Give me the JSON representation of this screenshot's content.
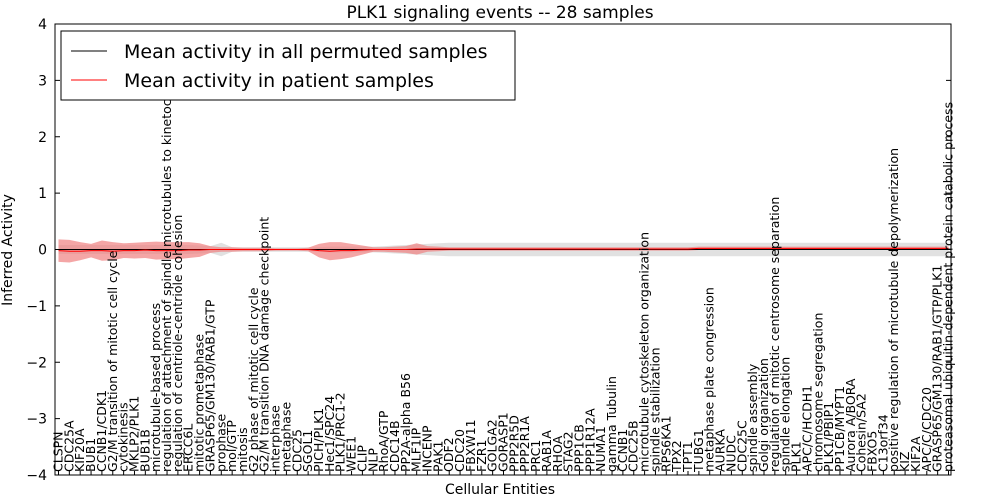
{
  "chart_data": {
    "type": "line",
    "title": "PLK1 signaling events -- 28 samples",
    "xlabel": "Cellular Entities",
    "ylabel": "Inferred Activity",
    "ylim": [
      -4,
      4
    ],
    "yticks": [
      -4,
      -3,
      -2,
      -1,
      0,
      1,
      2,
      3,
      4
    ],
    "legend_position": "top-left",
    "colors": {
      "permuted": "#000000",
      "patient": "#ff0000",
      "patient_band": "#f08080",
      "permuted_band": "#c8c8c8"
    },
    "categories": [
      "CLSPN",
      "CDC25A",
      "KIF20A",
      "BUB1",
      "CCNB1/CDK1",
      "G2/M transition of mitotic cell cycle",
      "cytokinesis",
      "MKLP2/PLK1",
      "BUB1B",
      "microtubule-based process",
      "regulation of attachment of spindle microtubules to kinetochore",
      "regulation of centriole-centriole cohesion",
      "ERCC6L",
      "mitotic prometaphase",
      "GRASP65/GM130/RAB1/GTP",
      "prophase",
      "mol/GTP",
      "mitosis",
      "G2 phase of mitotic cell cycle",
      "G2/M transition DNA damage checkpoint",
      "interphase",
      "metaphase",
      "CDC25",
      "SGOL1",
      "PICH/PLK1",
      "Hec1/SPC24",
      "PLK1/PRC1-2",
      "WEE1",
      "CLIP",
      "NLP",
      "RhoA/GTP",
      "CDC14B",
      "PP2A-alpha B56",
      "MLF1IP",
      "INCENP",
      "PAK1",
      "ODF2",
      "CDC20",
      "FBXW11",
      "FZR1",
      "GOLGA2",
      "GORASP1",
      "PPP2R5D",
      "PPP2R1A",
      "PRC1",
      "RAB1A",
      "RHOA",
      "STAG2",
      "PPP1CB",
      "PPP1R12A",
      "NUMA1",
      "gamma Tubulin",
      "CCNB1",
      "CDC25B",
      "microtubule cytoskeleton organization",
      "spindle stabilization",
      "RPS6KA1",
      "TPX2",
      "TPT1",
      "TUBG1",
      "metaphase plate congression",
      "AURKA",
      "NUDC",
      "CDC25C",
      "spindle assembly",
      "Golgi organization",
      "regulation of mitotic centrosome separation",
      "spindle elongation",
      "PLK1",
      "APC/C/HCDH1",
      "chromosome segregation",
      "PLK1/PBIP1",
      "PP1CB/MYPT1",
      "Aurora A/BORA",
      "Cohesin/SA2",
      "FBXO5",
      "C13orf34",
      "positive regulation of microtubule depolymerization",
      "KIZ",
      "KIF2A",
      "APC/C/CDC20",
      "GRASP65/GM130/RAB1/GTP/PLK1",
      "proteasomal ubiquitin-dependent protein catabolic process"
    ],
    "series": [
      {
        "name": "Mean activity in all permuted samples",
        "values": [
          0,
          0,
          0,
          0,
          0,
          0,
          0,
          0,
          0,
          0,
          0,
          0,
          0,
          0,
          0,
          0,
          0,
          0,
          0,
          0,
          0,
          0,
          0,
          0,
          0,
          0,
          0,
          0,
          0,
          0,
          0,
          0,
          0,
          0,
          0,
          0,
          0,
          0,
          0,
          0,
          0,
          0,
          0,
          0,
          0,
          0,
          0,
          0,
          0,
          0,
          0,
          0,
          0,
          0,
          0,
          0,
          0,
          0,
          0,
          0,
          0,
          0,
          0,
          0,
          0,
          0,
          0,
          0,
          0,
          0,
          0,
          0,
          0,
          0,
          0,
          0,
          0,
          0,
          0,
          0,
          0,
          0,
          0
        ]
      },
      {
        "name": "Mean activity in patient samples",
        "values": [
          -0.02,
          -0.03,
          -0.03,
          -0.02,
          -0.02,
          -0.03,
          -0.02,
          -0.02,
          -0.01,
          -0.02,
          -0.02,
          -0.02,
          -0.01,
          -0.01,
          0,
          0,
          0,
          0,
          0,
          0,
          0,
          0,
          0,
          0,
          -0.02,
          -0.03,
          -0.02,
          -0.02,
          -0.01,
          0,
          0,
          0,
          0,
          0.01,
          0.01,
          0.01,
          0.01,
          0.01,
          0.01,
          0.01,
          0.01,
          0.01,
          0.01,
          0.01,
          0.01,
          0.01,
          0.01,
          0.01,
          0.01,
          0.01,
          0.01,
          0.01,
          0.01,
          0.01,
          0.01,
          0.01,
          0.01,
          0.01,
          0.01,
          0.02,
          0.02,
          0.02,
          0.02,
          0.02,
          0.02,
          0.02,
          0.02,
          0.02,
          0.02,
          0.02,
          0.02,
          0.02,
          0.02,
          0.02,
          0.02,
          0.02,
          0.02,
          0.02,
          0.02,
          0.02,
          0.02,
          0.02,
          0.02
        ]
      }
    ],
    "patient_spread": [
      0.2,
      0.2,
      0.16,
      0.12,
      0.18,
      0.16,
      0.13,
      0.14,
      0.14,
      0.16,
      0.15,
      0.15,
      0.14,
      0.12,
      0.06,
      0.04,
      0.04,
      0.03,
      0.03,
      0.03,
      0.02,
      0.02,
      0.02,
      0.03,
      0.12,
      0.16,
      0.15,
      0.12,
      0.08,
      0.04,
      0.04,
      0.05,
      0.06,
      0.1,
      0.05,
      0.04,
      0.03,
      0.03,
      0.03,
      0.03,
      0.03,
      0.03,
      0.03,
      0.03,
      0.03,
      0.03,
      0.03,
      0.03,
      0.03,
      0.03,
      0.03,
      0.03,
      0.03,
      0.03,
      0.03,
      0.03,
      0.03,
      0.03,
      0.03,
      0.03,
      0.03,
      0.03,
      0.03,
      0.03,
      0.03,
      0.03,
      0.03,
      0.03,
      0.03,
      0.03,
      0.03,
      0.03,
      0.03,
      0.03,
      0.03,
      0.03,
      0.03,
      0.03,
      0.03,
      0.03,
      0.03,
      0.03,
      0.03
    ],
    "permuted_spread": [
      0.08,
      0.08,
      0.08,
      0.08,
      0.08,
      0.08,
      0.08,
      0.08,
      0.08,
      0.08,
      0.08,
      0.08,
      0.08,
      0.07,
      0.06,
      0.12,
      0.04,
      0.04,
      0.04,
      0.04,
      0.04,
      0.04,
      0.04,
      0.04,
      0.04,
      0.05,
      0.05,
      0.05,
      0.05,
      0.05,
      0.06,
      0.07,
      0.08,
      0.09,
      0.1,
      0.11,
      0.12,
      0.12,
      0.12,
      0.12,
      0.12,
      0.12,
      0.12,
      0.12,
      0.12,
      0.12,
      0.12,
      0.12,
      0.12,
      0.12,
      0.12,
      0.12,
      0.12,
      0.12,
      0.12,
      0.12,
      0.12,
      0.12,
      0.12,
      0.12,
      0.12,
      0.12,
      0.12,
      0.12,
      0.12,
      0.12,
      0.12,
      0.12,
      0.12,
      0.12,
      0.12,
      0.12,
      0.12,
      0.12,
      0.12,
      0.12,
      0.12,
      0.12,
      0.12,
      0.12,
      0.12,
      0.12,
      0.12
    ]
  }
}
